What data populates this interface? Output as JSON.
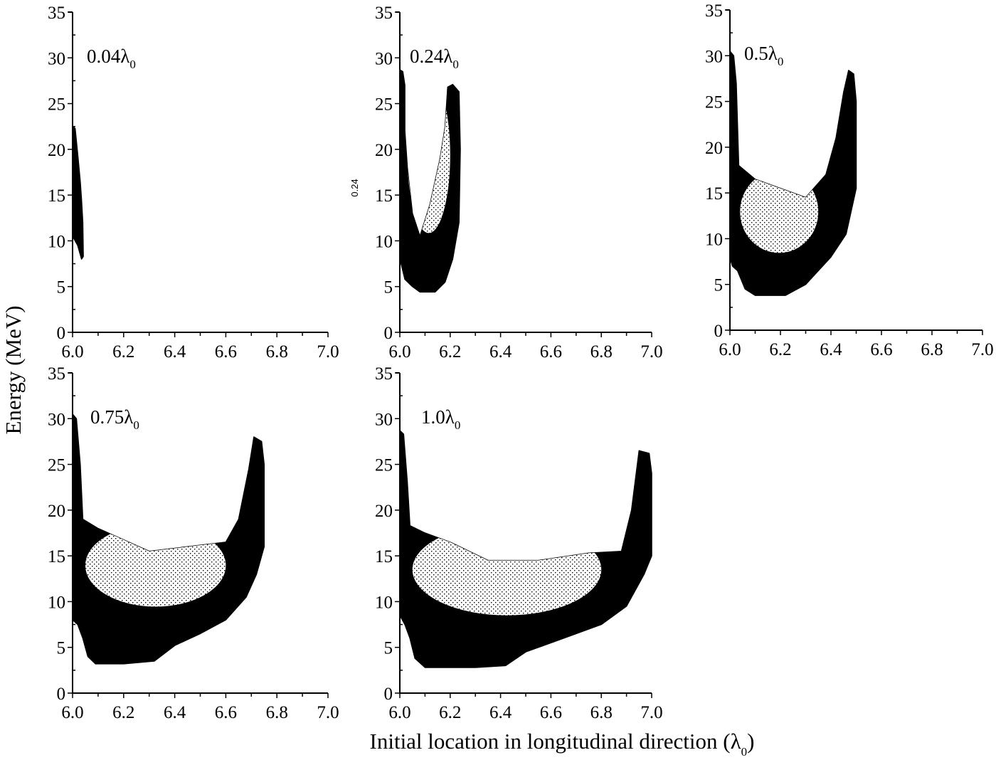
{
  "figure": {
    "ylabel": "Energy (MeV)",
    "xlabel_main": "Initial location in longitudinal direction (λ",
    "xlabel_sub": "0",
    "xlabel_close": ")"
  },
  "chart_data": [
    {
      "type": "scatter",
      "panel": "0.04λ0",
      "label": "0.04λ",
      "label_sub": "0",
      "xlabel": "Initial location in longitudinal direction (λ0)",
      "ylabel": "Energy (MeV)",
      "xlim": [
        6.0,
        7.0
      ],
      "ylim": [
        0,
        35
      ],
      "xticks": [
        "6.0",
        "6.2",
        "6.4",
        "6.6",
        "6.8",
        "7.0"
      ],
      "yticks": [
        "0",
        "5",
        "10",
        "15",
        "20",
        "25",
        "30",
        "35"
      ],
      "grid": false,
      "color": "#000000",
      "envelope": [
        [
          6.0,
          22.5
        ],
        [
          6.01,
          22.3
        ],
        [
          6.02,
          19.5
        ],
        [
          6.03,
          16.5
        ],
        [
          6.035,
          14.5
        ],
        [
          6.04,
          12
        ],
        [
          6.042,
          8.3
        ],
        [
          6.035,
          8.0
        ],
        [
          6.02,
          9.5
        ],
        [
          6.0,
          10.5
        ]
      ]
    },
    {
      "type": "scatter",
      "panel": "0.24λ0",
      "label": "0.24λ",
      "label_sub": "0",
      "stray_text": "0.24",
      "xlabel": "Initial location in longitudinal direction (λ0)",
      "ylabel": "Energy (MeV)",
      "xlim": [
        6.0,
        7.0
      ],
      "ylim": [
        0,
        35
      ],
      "xticks": [
        "6.0",
        "6.2",
        "6.4",
        "6.6",
        "6.8",
        "7.0"
      ],
      "yticks": [
        "0",
        "5",
        "10",
        "15",
        "20",
        "25",
        "30",
        "35"
      ],
      "grid": false,
      "color": "#000000",
      "envelope": [
        [
          6.0,
          28.7
        ],
        [
          6.012,
          28.5
        ],
        [
          6.02,
          27
        ],
        [
          6.02,
          22
        ],
        [
          6.03,
          18
        ],
        [
          6.05,
          13
        ],
        [
          6.08,
          10.5
        ],
        [
          6.12,
          14
        ],
        [
          6.16,
          19
        ],
        [
          6.18,
          22.5
        ],
        [
          6.19,
          26.8
        ],
        [
          6.21,
          27.1
        ],
        [
          6.235,
          26.3
        ],
        [
          6.24,
          20
        ],
        [
          6.235,
          12
        ],
        [
          6.21,
          8
        ],
        [
          6.18,
          5.5
        ],
        [
          6.14,
          4.4
        ],
        [
          6.08,
          4.4
        ],
        [
          6.05,
          5
        ],
        [
          6.02,
          5.8
        ],
        [
          6.005,
          7.5
        ],
        [
          6.0,
          9
        ]
      ],
      "sparse_region": {
        "x_range": [
          6.03,
          6.2
        ],
        "y_range": [
          10,
          27
        ]
      }
    },
    {
      "type": "scatter",
      "panel": "0.5λ0",
      "label": "0.5λ",
      "label_sub": "0",
      "xlabel": "Initial location in longitudinal direction (λ0)",
      "ylabel": "Energy (MeV)",
      "xlim": [
        6.0,
        7.0
      ],
      "ylim": [
        0,
        35
      ],
      "xticks": [
        "6.0",
        "6.2",
        "6.4",
        "6.6",
        "6.8",
        "7.0"
      ],
      "yticks": [
        "0",
        "5",
        "10",
        "15",
        "20",
        "25",
        "30",
        "35"
      ],
      "grid": false,
      "color": "#000000",
      "envelope": [
        [
          6.0,
          30.5
        ],
        [
          6.015,
          30
        ],
        [
          6.025,
          27
        ],
        [
          6.035,
          18
        ],
        [
          6.1,
          16.5
        ],
        [
          6.2,
          15.5
        ],
        [
          6.3,
          14.5
        ],
        [
          6.38,
          17
        ],
        [
          6.42,
          21
        ],
        [
          6.45,
          26
        ],
        [
          6.47,
          28.4
        ],
        [
          6.49,
          28
        ],
        [
          6.5,
          25
        ],
        [
          6.5,
          15.5
        ],
        [
          6.46,
          10.5
        ],
        [
          6.4,
          8
        ],
        [
          6.3,
          5
        ],
        [
          6.22,
          3.8
        ],
        [
          6.1,
          3.8
        ],
        [
          6.06,
          4.5
        ],
        [
          6.03,
          6.5
        ],
        [
          6.01,
          7
        ],
        [
          6.0,
          8
        ]
      ],
      "sparse_region": {
        "x_range": [
          6.04,
          6.35
        ],
        "y_range": [
          8,
          17
        ]
      }
    },
    {
      "type": "scatter",
      "panel": "0.75λ0",
      "label": "0.75λ",
      "label_sub": "0",
      "xlabel": "Initial location in longitudinal direction (λ0)",
      "ylabel": "Energy (MeV)",
      "xlim": [
        6.0,
        7.0
      ],
      "ylim": [
        0,
        35
      ],
      "xticks": [
        "6.0",
        "6.2",
        "6.4",
        "6.6",
        "6.8",
        "7.0"
      ],
      "yticks": [
        "0",
        "5",
        "10",
        "15",
        "20",
        "25",
        "30",
        "35"
      ],
      "grid": false,
      "color": "#000000",
      "envelope": [
        [
          6.0,
          30.5
        ],
        [
          6.015,
          30
        ],
        [
          6.03,
          25
        ],
        [
          6.04,
          19
        ],
        [
          6.1,
          18
        ],
        [
          6.18,
          17
        ],
        [
          6.3,
          15.5
        ],
        [
          6.45,
          16
        ],
        [
          6.6,
          16.5
        ],
        [
          6.65,
          19
        ],
        [
          6.69,
          24.5
        ],
        [
          6.71,
          28
        ],
        [
          6.74,
          27.5
        ],
        [
          6.75,
          25
        ],
        [
          6.75,
          16
        ],
        [
          6.72,
          13
        ],
        [
          6.68,
          10.5
        ],
        [
          6.6,
          8
        ],
        [
          6.5,
          6.5
        ],
        [
          6.4,
          5.2
        ],
        [
          6.32,
          3.5
        ],
        [
          6.2,
          3.2
        ],
        [
          6.09,
          3.2
        ],
        [
          6.06,
          4
        ],
        [
          6.04,
          6
        ],
        [
          6.02,
          7.5
        ],
        [
          6.0,
          8
        ]
      ],
      "sparse_region": {
        "x_range": [
          6.05,
          6.6
        ],
        "y_range": [
          9,
          18
        ]
      }
    },
    {
      "type": "scatter",
      "panel": "1.0λ0",
      "label": "1.0λ",
      "label_sub": "0",
      "xlabel": "Initial location in longitudinal direction (λ0)",
      "ylabel": "Energy (MeV)",
      "xlim": [
        6.0,
        7.0
      ],
      "ylim": [
        0,
        35
      ],
      "xticks": [
        "6.0",
        "6.2",
        "6.4",
        "6.6",
        "6.8",
        "7.0"
      ],
      "yticks": [
        "0",
        "5",
        "10",
        "15",
        "20",
        "25",
        "30",
        "35"
      ],
      "grid": false,
      "color": "#000000",
      "envelope": [
        [
          6.0,
          28.7
        ],
        [
          6.015,
          28.3
        ],
        [
          6.03,
          23
        ],
        [
          6.04,
          18.3
        ],
        [
          6.1,
          17.5
        ],
        [
          6.2,
          16.5
        ],
        [
          6.35,
          14.5
        ],
        [
          6.55,
          14.5
        ],
        [
          6.75,
          15.3
        ],
        [
          6.88,
          15.5
        ],
        [
          6.92,
          20
        ],
        [
          6.95,
          26.5
        ],
        [
          6.99,
          26.2
        ],
        [
          7.0,
          24
        ],
        [
          7.0,
          15
        ],
        [
          6.97,
          13
        ],
        [
          6.9,
          9.5
        ],
        [
          6.8,
          7.5
        ],
        [
          6.65,
          6
        ],
        [
          6.5,
          4.5
        ],
        [
          6.42,
          3
        ],
        [
          6.3,
          2.8
        ],
        [
          6.1,
          2.8
        ],
        [
          6.06,
          3.8
        ],
        [
          6.04,
          6
        ],
        [
          6.02,
          7.5
        ],
        [
          6.0,
          8.5
        ]
      ],
      "sparse_region": {
        "x_range": [
          6.05,
          6.8
        ],
        "y_range": [
          8,
          18
        ]
      }
    }
  ]
}
